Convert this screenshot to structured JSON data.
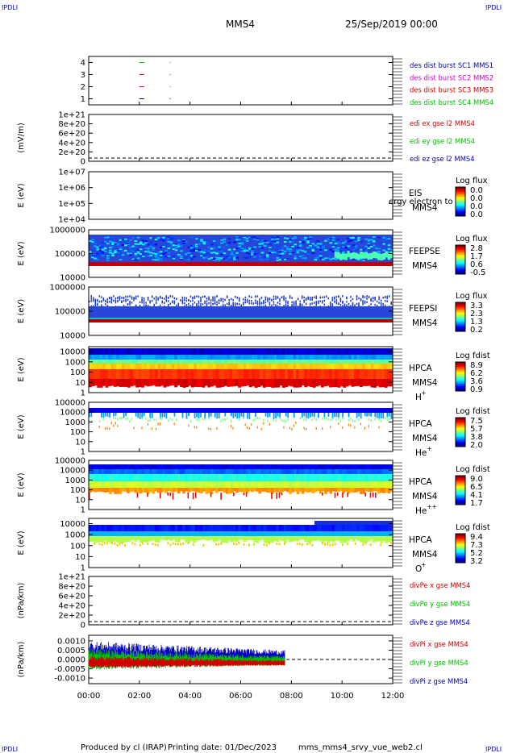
{
  "header": {
    "corner_label": "IPDLI",
    "spacecraft": "MMS4",
    "datetime": "25/Sep/2019 00:00"
  },
  "footer": {
    "produced_by": "Produced by cl (IRAP)",
    "printing_date": "Printing date: 01/Dec/2023",
    "script_name": "mms_mms4_srvy_vue_web2.cl"
  },
  "colors": {
    "red": "#d00000",
    "green": "#00c000",
    "blue": "#0000c0",
    "magenta": "#d000d0",
    "navy": "#000080"
  },
  "chart_data": {
    "type": "line",
    "x_axis": {
      "ticks": [
        "00:00",
        "02:00",
        "04:00",
        "06:00",
        "08:00",
        "10:00",
        "12:00"
      ],
      "range_hours": [
        0,
        12
      ]
    },
    "panels": [
      {
        "id": "burst",
        "type": "scatter",
        "yticks": [
          "1",
          "2",
          "3",
          "4"
        ],
        "ylim": [
          0.5,
          4.5
        ],
        "legend": [
          {
            "text": "des dist burst SC1 MMS1",
            "color": "#0000c0"
          },
          {
            "text": "des dist burst SC2 MMS2",
            "color": "#d000d0"
          },
          {
            "text": "des dist burst SC3 MMS3",
            "color": "#d00000"
          },
          {
            "text": "des dist burst SC4 MMS4",
            "color": "#00c000"
          }
        ],
        "series": [
          {
            "y": 4,
            "color": "#00c000",
            "x_hours": [
              2.0,
              3.2
            ]
          },
          {
            "y": 3,
            "color": "#d00000",
            "x_hours": [
              2.0,
              3.2
            ]
          },
          {
            "y": 2,
            "color": "#d000d0",
            "x_hours": [
              2.0,
              3.2
            ]
          },
          {
            "y": 1,
            "color": "#0000c0",
            "x_hours": [
              2.0,
              3.2
            ]
          }
        ]
      },
      {
        "id": "edi",
        "type": "line",
        "ylabel": "(mV/m)",
        "yticks": [
          "0",
          "2e+20",
          "4e+20",
          "6e+20",
          "8e+20",
          "1e+21"
        ],
        "ylim": [
          0,
          1e+21
        ],
        "zero_dashed": true,
        "legend": [
          {
            "text": "edi ex gse l2 MMS4",
            "color": "#d00000"
          },
          {
            "text": "edi ey gse l2 MMS4",
            "color": "#00c000"
          },
          {
            "text": "edi ez gse l2 MMS4",
            "color": "#0000c0"
          }
        ]
      },
      {
        "id": "eis",
        "type": "heatmap",
        "ylabel": "E (eV)",
        "yscale": "log",
        "yticks": [
          "1e+04",
          "1e+05",
          "1e+06",
          "1e+07"
        ],
        "ylim": [
          10000.0,
          10000000.0
        ],
        "label_top": "EIS",
        "label_bottom": "MMS4",
        "overlay_text": "ergy electron to",
        "colorbar": {
          "title": "Log flux",
          "values": [
            "0.0",
            "0.0",
            "0.0",
            "0.0"
          ]
        },
        "fill": "empty"
      },
      {
        "id": "feepse",
        "type": "heatmap",
        "ylabel": "E (eV)",
        "yscale": "log",
        "yticks": [
          "10000",
          "100000",
          "1000000"
        ],
        "ylim": [
          10000.0,
          1000000.0
        ],
        "label_top": "FEEPSE",
        "label_bottom": "MMS4",
        "colorbar": {
          "title": "Log flux",
          "values": [
            "2.8",
            "1.7",
            "0.6",
            "-0.5"
          ]
        },
        "fill": "feepse"
      },
      {
        "id": "feepsi",
        "type": "heatmap",
        "ylabel": "E (eV)",
        "yscale": "log",
        "yticks": [
          "10000",
          "100000",
          "1000000"
        ],
        "ylim": [
          10000.0,
          1000000.0
        ],
        "label_top": "FEEPSI",
        "label_bottom": "MMS4",
        "colorbar": {
          "title": "Log flux",
          "values": [
            "3.3",
            "2.3",
            "1.3",
            "0.2"
          ]
        },
        "fill": "feepsi"
      },
      {
        "id": "hpca_h",
        "type": "heatmap",
        "ylabel": "E (eV)",
        "yscale": "log",
        "yticks": [
          "1",
          "10",
          "100",
          "1000",
          "10000"
        ],
        "ylim": [
          1,
          30000
        ],
        "label_top": "HPCA",
        "label_bottom": "MMS4",
        "species": "H",
        "species_sup": "+",
        "colorbar": {
          "title": "Log fdist",
          "values": [
            "8.9",
            "6.2",
            "3.6",
            "0.9"
          ]
        },
        "fill": "hpca_h"
      },
      {
        "id": "hpca_he",
        "type": "heatmap",
        "ylabel": "E (eV)",
        "yscale": "log",
        "yticks": [
          "1",
          "10",
          "100",
          "1000",
          "10000",
          "100000"
        ],
        "ylim": [
          1,
          100000
        ],
        "label_top": "HPCA",
        "label_bottom": "MMS4",
        "species": "He",
        "species_sup": "+",
        "colorbar": {
          "title": "Log fdist",
          "values": [
            "7.5",
            "5.7",
            "3.8",
            "2.0"
          ]
        },
        "fill": "hpca_he"
      },
      {
        "id": "hpca_hepp",
        "type": "heatmap",
        "ylabel": "E (eV)",
        "yscale": "log",
        "yticks": [
          "1",
          "10",
          "100",
          "1000",
          "10000",
          "100000"
        ],
        "ylim": [
          1,
          100000
        ],
        "label_top": "HPCA",
        "label_bottom": "MMS4",
        "species": "He",
        "species_sup": "++",
        "colorbar": {
          "title": "Log fdist",
          "values": [
            "9.0",
            "6.5",
            "4.1",
            "1.7"
          ]
        },
        "fill": "hpca_hepp"
      },
      {
        "id": "hpca_o",
        "type": "heatmap",
        "ylabel": "E (eV)",
        "yscale": "log",
        "yticks": [
          "1",
          "10",
          "100",
          "1000",
          "10000"
        ],
        "ylim": [
          1,
          30000
        ],
        "label_top": "HPCA",
        "label_bottom": "MMS4",
        "species": "O",
        "species_sup": "+",
        "colorbar": {
          "title": "Log fdist",
          "values": [
            "9.4",
            "7.3",
            "5.2",
            "3.2"
          ]
        },
        "fill": "hpca_o"
      },
      {
        "id": "divpe",
        "type": "line",
        "ylabel": "(nPa/km)",
        "yticks": [
          "0",
          "2e+20",
          "4e+20",
          "6e+20",
          "8e+20",
          "1e+21"
        ],
        "ylim": [
          0,
          1e+21
        ],
        "zero_dashed": true,
        "legend": [
          {
            "text": "divPe x gse MMS4",
            "color": "#d00000"
          },
          {
            "text": "divPe y gse MMS4",
            "color": "#00c000"
          },
          {
            "text": "divPe z gse MMS4",
            "color": "#0000c0"
          }
        ]
      },
      {
        "id": "divpi",
        "type": "line",
        "ylabel": "(nPa/km)",
        "yticks": [
          "-0.0010",
          "-0.0005",
          "0.0000",
          "0.0005",
          "0.0010"
        ],
        "ylim": [
          -0.0013,
          0.0013
        ],
        "zero_dashed": true,
        "data_end_hour": 7.75,
        "envelope": {
          "blue_amplitude": 0.0009,
          "green_amplitude": 0.0007,
          "red_amplitude": 0.0004
        },
        "legend": [
          {
            "text": "divPi x gse MMS4",
            "color": "#d00000"
          },
          {
            "text": "divPi y gse MMS4",
            "color": "#00c000"
          },
          {
            "text": "divPi z gse MMS4",
            "color": "#0000c0"
          }
        ]
      }
    ]
  }
}
